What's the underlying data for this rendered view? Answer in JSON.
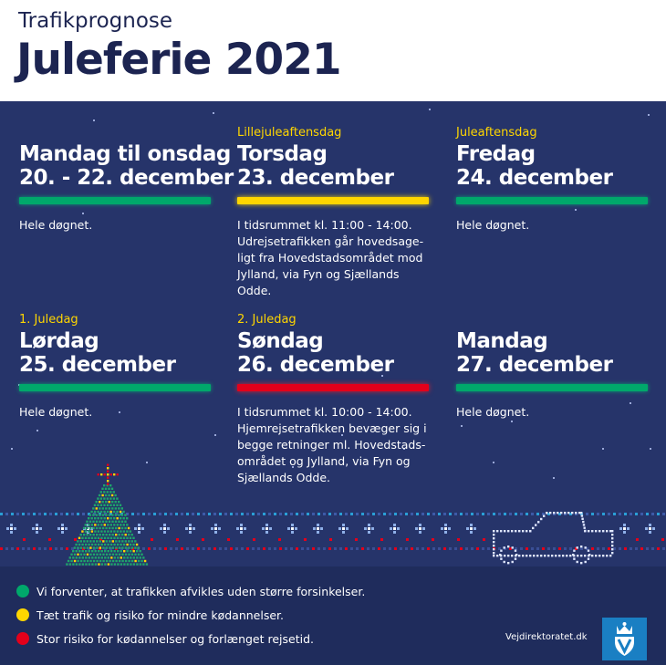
{
  "header": {
    "kicker": "Trafikprognose",
    "title": "Juleferie 2021"
  },
  "colors": {
    "green": "#00a86b",
    "yellow": "#ffd600",
    "red": "#e3001b",
    "background": "#26346a"
  },
  "days": [
    {
      "label": "",
      "line1": "Mandag til onsdag",
      "line2": "20. - 22. december",
      "status": "green",
      "desc": [
        "Hele døgnet."
      ]
    },
    {
      "label": "Lillejuleaftensdag",
      "line1": "Torsdag",
      "line2": "23. december",
      "status": "yellow",
      "desc": [
        "I tidsrummet kl. 11:00 - 14:00.",
        "Udrejsetrafikken går hovedsage-",
        "ligt fra Hovedstadsområdet mod",
        "Jylland, via Fyn og Sjællands Odde."
      ]
    },
    {
      "label": "Juleaftensdag",
      "line1": "Fredag",
      "line2": "24. december",
      "status": "green",
      "desc": [
        "Hele døgnet."
      ]
    },
    {
      "label": "1. Juledag",
      "line1": "Lørdag",
      "line2": "25. december",
      "status": "green",
      "desc": [
        "Hele døgnet."
      ]
    },
    {
      "label": "2. Juledag",
      "line1": "Søndag",
      "line2": "26. december",
      "status": "red",
      "desc": [
        "I tidsrummet kl. 10:00 - 14:00.",
        "Hjemrejsetrafikken bevæger sig i",
        "begge retninger ml. Hovedstads-",
        "området og Jylland, via Fyn og",
        "Sjællands Odde."
      ]
    },
    {
      "label": "",
      "line1": "Mandag",
      "line2": "27. december",
      "status": "green",
      "desc": [
        "Hele døgnet."
      ]
    }
  ],
  "legend": [
    {
      "status": "green",
      "text": "Vi forventer, at trafikken afvikles uden større forsinkelser."
    },
    {
      "status": "yellow",
      "text": "Tæt trafik og risiko for mindre kødannelser."
    },
    {
      "status": "red",
      "text": "Stor risiko for kødannelser og forlænget rejsetid."
    }
  ],
  "footer": {
    "site": "Vejdirektoratet.dk"
  },
  "icons": {
    "logo": "crown-shield-icon",
    "tree": "christmas-tree-icon",
    "car": "car-icon"
  }
}
